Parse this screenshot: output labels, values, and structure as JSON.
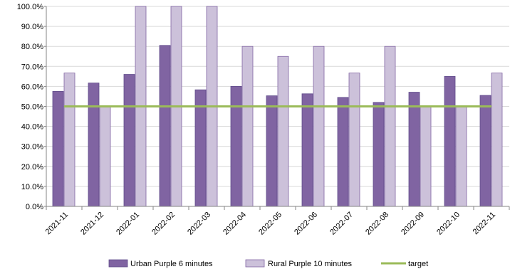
{
  "chart_data": {
    "type": "bar",
    "categories": [
      "2021-11",
      "2021-12",
      "2022-01",
      "2022-02",
      "2022-03",
      "2022-04",
      "2022-05",
      "2022-06",
      "2022-07",
      "2022-08",
      "2022-09",
      "2022-10",
      "2022-11"
    ],
    "series": [
      {
        "name": "Urban Purple 6 minutes",
        "values": [
          0.575,
          0.617,
          0.66,
          0.805,
          0.583,
          0.6,
          0.553,
          0.563,
          0.545,
          0.52,
          0.571,
          0.65,
          0.555
        ],
        "color": "#8064a2",
        "type": "bar"
      },
      {
        "name": "Rural Purple 10 minutes",
        "values": [
          0.667,
          0.5,
          1.0,
          1.0,
          1.0,
          0.8,
          0.75,
          0.8,
          0.667,
          0.8,
          0.5,
          0.5,
          0.667
        ],
        "color": "#ccc1da",
        "type": "bar"
      },
      {
        "name": "target",
        "values": [
          0.5,
          0.5,
          0.5,
          0.5,
          0.5,
          0.5,
          0.5,
          0.5,
          0.5,
          0.5,
          0.5,
          0.5,
          0.5
        ],
        "color": "#9bbb59",
        "type": "line"
      }
    ],
    "yticks": [
      "0.0%",
      "10.0%",
      "20.0%",
      "30.0%",
      "40.0%",
      "50.0%",
      "60.0%",
      "70.0%",
      "80.0%",
      "90.0%",
      "100.0%"
    ],
    "ylim": [
      0,
      1
    ],
    "grid": "horizontal",
    "legend": "bottom",
    "title": "",
    "xlabel": "",
    "ylabel": ""
  }
}
